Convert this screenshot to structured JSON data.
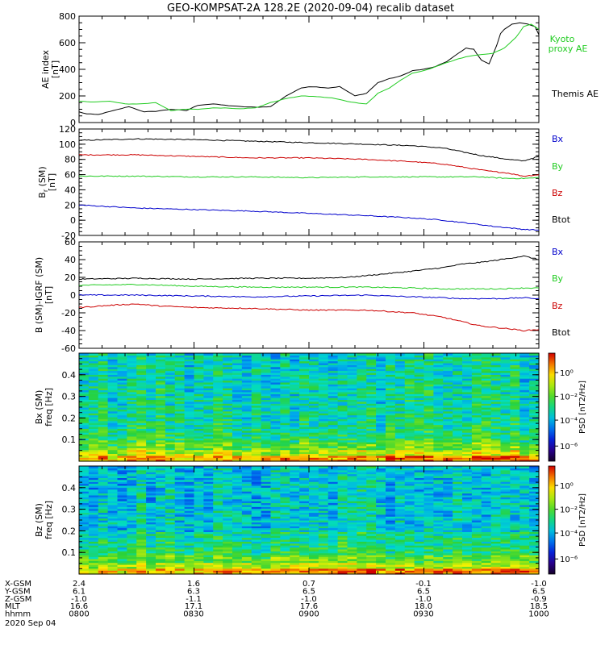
{
  "title": "GEO-KOMPSAT-2A 128.2E (2020-09-04) recalib dataset",
  "chart_data": [
    {
      "type": "line",
      "panel": "ae",
      "ylabel": [
        "AE index",
        "[nT]"
      ],
      "ylim": [
        0,
        800
      ],
      "yticks": [
        0,
        200,
        400,
        600,
        800
      ],
      "xlim": [
        0,
        120
      ],
      "series": [
        {
          "name": "Themis AE",
          "color": "#000000",
          "x": [
            0,
            2,
            5,
            9,
            13,
            17,
            20,
            24,
            28,
            31,
            35,
            38,
            42,
            46,
            50,
            54,
            58,
            60,
            62,
            65,
            68,
            72,
            75,
            78,
            81,
            84,
            87,
            90,
            93,
            96,
            99,
            101,
            103,
            105,
            107,
            109,
            110,
            111,
            113,
            115,
            117,
            119,
            120
          ],
          "y": [
            80,
            65,
            60,
            90,
            120,
            80,
            85,
            100,
            90,
            130,
            140,
            130,
            120,
            115,
            120,
            200,
            260,
            270,
            268,
            260,
            270,
            200,
            220,
            300,
            330,
            350,
            390,
            400,
            420,
            460,
            520,
            560,
            550,
            470,
            440,
            580,
            670,
            700,
            740,
            750,
            740,
            720,
            660
          ]
        },
        {
          "name": "Kyoto proxy AE",
          "color": "#22cc22",
          "label": [
            "Kyoto",
            "proxy AE"
          ],
          "x": [
            0,
            4,
            8,
            12,
            16,
            20,
            24,
            28,
            31,
            35,
            38,
            42,
            46,
            50,
            54,
            58,
            62,
            66,
            70,
            72,
            75,
            78,
            81,
            84,
            87,
            90,
            93,
            96,
            99,
            102,
            105,
            108,
            111,
            114,
            116,
            118,
            120
          ],
          "y": [
            160,
            155,
            160,
            140,
            140,
            150,
            90,
            100,
            100,
            110,
            110,
            105,
            110,
            150,
            180,
            200,
            195,
            185,
            160,
            150,
            140,
            220,
            260,
            320,
            370,
            390,
            420,
            450,
            480,
            500,
            510,
            520,
            560,
            640,
            720,
            740,
            700
          ]
        }
      ]
    },
    {
      "type": "line",
      "panel": "b_sm",
      "ylabel": [
        "B",
        "r",
        " (SM)",
        "[nT]"
      ],
      "ylim": [
        -20,
        120
      ],
      "yticks": [
        -20,
        0,
        20,
        40,
        60,
        80,
        100,
        120
      ],
      "xlim": [
        0,
        120
      ],
      "legend": [
        {
          "text": "Bx",
          "color": "#0000cc"
        },
        {
          "text": "By",
          "color": "#22cc22"
        },
        {
          "text": "Bz",
          "color": "#cc0000"
        },
        {
          "text": "Btot",
          "color": "#000000"
        }
      ],
      "series": [
        {
          "name": "Btot",
          "color": "#000000",
          "x": [
            0,
            15,
            30,
            45,
            60,
            75,
            87,
            95,
            100,
            105,
            108,
            112,
            116,
            120
          ],
          "y": [
            105,
            107,
            106,
            104,
            102,
            100,
            98,
            95,
            90,
            85,
            83,
            80,
            78,
            84
          ]
        },
        {
          "name": "Bz",
          "color": "#cc0000",
          "x": [
            0,
            15,
            30,
            45,
            60,
            75,
            87,
            95,
            100,
            105,
            108,
            112,
            116,
            120
          ],
          "y": [
            86,
            86,
            84,
            82,
            82,
            80,
            77,
            74,
            70,
            66,
            64,
            62,
            58,
            60
          ]
        },
        {
          "name": "By",
          "color": "#22cc22",
          "x": [
            0,
            15,
            30,
            45,
            60,
            75,
            87,
            95,
            100,
            105,
            108,
            112,
            116,
            120
          ],
          "y": [
            58,
            58,
            57,
            57,
            56,
            57,
            57,
            57,
            57,
            57,
            56,
            55,
            55,
            56
          ]
        },
        {
          "name": "Bx",
          "color": "#0000cc",
          "x": [
            0,
            15,
            30,
            45,
            60,
            75,
            87,
            95,
            100,
            105,
            108,
            112,
            116,
            120
          ],
          "y": [
            20,
            16,
            14,
            12,
            9,
            6,
            3,
            0,
            -3,
            -6,
            -8,
            -10,
            -12,
            -13
          ]
        }
      ]
    },
    {
      "type": "line",
      "panel": "b_igrf",
      "ylabel": [
        "B (SM)-IGRF (SM)",
        "[nT]"
      ],
      "ylim": [
        -60,
        60
      ],
      "yticks": [
        -60,
        -40,
        -20,
        0,
        20,
        40,
        60
      ],
      "xlim": [
        0,
        120
      ],
      "legend": [
        {
          "text": "Bx",
          "color": "#0000cc"
        },
        {
          "text": "By",
          "color": "#22cc22"
        },
        {
          "text": "Bz",
          "color": "#cc0000"
        },
        {
          "text": "Btot",
          "color": "#000000"
        }
      ],
      "series": [
        {
          "name": "Btot",
          "color": "#000000",
          "x": [
            0,
            15,
            30,
            45,
            60,
            70,
            80,
            87,
            95,
            100,
            105,
            110,
            116,
            120
          ],
          "y": [
            18,
            19,
            18,
            19,
            19,
            20,
            24,
            27,
            31,
            35,
            37,
            40,
            44,
            40
          ]
        },
        {
          "name": "By",
          "color": "#22cc22",
          "x": [
            0,
            15,
            30,
            45,
            60,
            75,
            87,
            95,
            100,
            105,
            110,
            116,
            120
          ],
          "y": [
            11,
            12,
            10,
            9,
            9,
            9,
            8,
            7,
            7,
            7,
            7,
            8,
            8
          ]
        },
        {
          "name": "Bx",
          "color": "#0000cc",
          "x": [
            0,
            15,
            30,
            45,
            60,
            75,
            87,
            95,
            100,
            105,
            110,
            116,
            120
          ],
          "y": [
            0,
            0,
            -1,
            -2,
            -1,
            0,
            -2,
            -3,
            -4,
            -4,
            -4,
            -3,
            -4
          ]
        },
        {
          "name": "Bz",
          "color": "#cc0000",
          "x": [
            0,
            10,
            15,
            20,
            30,
            45,
            60,
            75,
            87,
            95,
            100,
            105,
            110,
            116,
            120
          ],
          "y": [
            -14,
            -11,
            -10,
            -12,
            -14,
            -15,
            -17,
            -17,
            -20,
            -25,
            -30,
            -35,
            -37,
            -40,
            -39
          ]
        }
      ]
    },
    {
      "type": "heatmap",
      "panel": "bx_spec",
      "ylabel": [
        "Bx (SM)",
        "freq [Hz]"
      ],
      "ylim": [
        0,
        0.5
      ],
      "yticks": [
        0.1,
        0.2,
        0.3,
        0.4
      ],
      "colorbar": {
        "label": "PSD [nT2/Hz]",
        "ticks": [
          "10⁰",
          "10⁻²",
          "10⁻⁴",
          "10⁻⁶"
        ]
      }
    },
    {
      "type": "heatmap",
      "panel": "bz_spec",
      "ylabel": [
        "Bz (SM)",
        "freq [Hz]"
      ],
      "ylim": [
        0,
        0.5
      ],
      "yticks": [
        0.1,
        0.2,
        0.3,
        0.4
      ],
      "colorbar": {
        "label": "PSD [nT2/Hz]",
        "ticks": [
          "10⁰",
          "10⁻²",
          "10⁻⁴",
          "10⁻⁶"
        ]
      }
    }
  ],
  "ephemeris": {
    "rows": [
      {
        "label": "X-GSM",
        "values": [
          "2.4",
          "1.6",
          "0.7",
          "-0.1",
          "-1.0"
        ]
      },
      {
        "label": "Y-GSM",
        "values": [
          "6.1",
          "6.3",
          "6.5",
          "6.5",
          "6.5"
        ]
      },
      {
        "label": "Z-GSM",
        "values": [
          "-1.0",
          "-1.1",
          "-1.0",
          "-1.0",
          "-0.9"
        ]
      },
      {
        "label": "MLT",
        "values": [
          "16.6",
          "17.1",
          "17.6",
          "18.0",
          "18.5"
        ]
      },
      {
        "label": "hhmm",
        "values": [
          "0800",
          "0830",
          "0900",
          "0930",
          "1000"
        ]
      }
    ],
    "date": "2020 Sep 04"
  }
}
